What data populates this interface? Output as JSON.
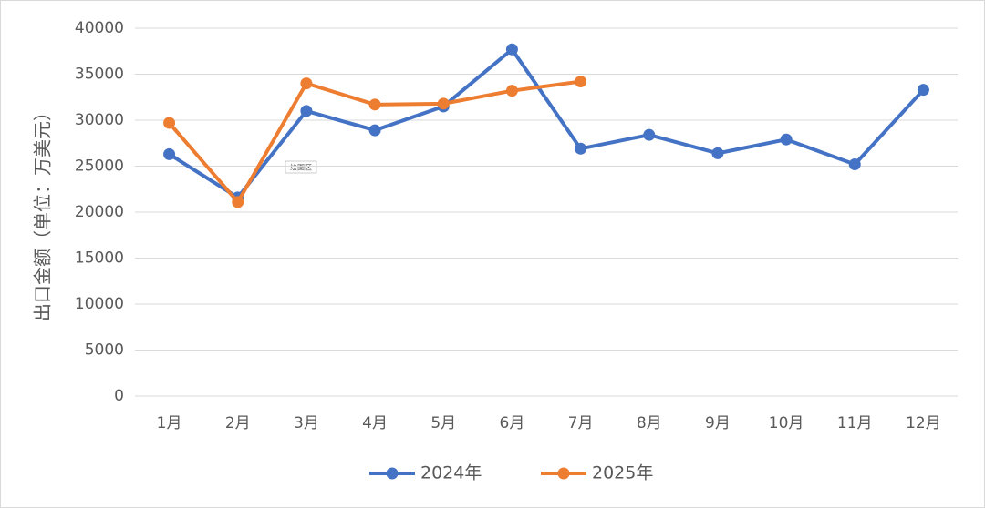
{
  "chart_data": {
    "type": "line",
    "y_label": "出口金额（单位：万美元）",
    "annotation": "绘图区",
    "categories": [
      "1月",
      "2月",
      "3月",
      "4月",
      "5月",
      "6月",
      "7月",
      "8月",
      "9月",
      "10月",
      "11月",
      "12月"
    ],
    "series": [
      {
        "name": "2024年",
        "color": "#4472c4",
        "values": [
          26300,
          21600,
          31000,
          28900,
          31500,
          37700,
          26900,
          28400,
          26400,
          27900,
          25200,
          33300
        ]
      },
      {
        "name": "2025年",
        "color": "#ed7d31",
        "values": [
          29700,
          21100,
          34000,
          31700,
          31800,
          33200,
          34200,
          null,
          null,
          null,
          null,
          null
        ]
      }
    ],
    "ylim": [
      0,
      40000
    ],
    "yticks": [
      0,
      5000,
      10000,
      15000,
      20000,
      25000,
      30000,
      35000,
      40000
    ],
    "grid": true,
    "legend": "bottom"
  }
}
